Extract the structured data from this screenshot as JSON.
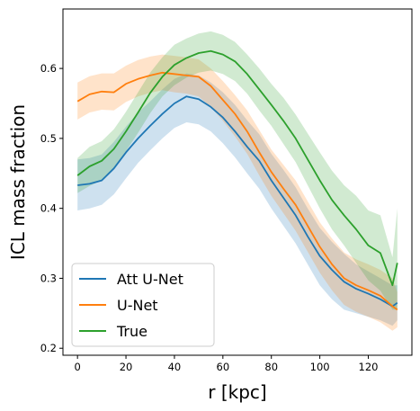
{
  "chart_data": {
    "type": "line",
    "title": "",
    "xlabel": "r [kpc]",
    "ylabel": "ICL mass fraction",
    "xlim": [
      -6,
      138
    ],
    "ylim": [
      0.19,
      0.685
    ],
    "xticks": [
      0,
      20,
      40,
      60,
      80,
      100,
      120
    ],
    "yticks": [
      0.2,
      0.3,
      0.4,
      0.5,
      0.6
    ],
    "grid": false,
    "legend_position": "lower-left",
    "series": [
      {
        "name": "Att U-Net",
        "color": "#1f77b4",
        "x": [
          0,
          5,
          10,
          15,
          20,
          25,
          30,
          35,
          40,
          45,
          50,
          55,
          60,
          65,
          70,
          75,
          80,
          85,
          90,
          95,
          100,
          105,
          110,
          115,
          120,
          125,
          130,
          132
        ],
        "y": [
          0.433,
          0.435,
          0.44,
          0.457,
          0.48,
          0.5,
          0.518,
          0.535,
          0.55,
          0.56,
          0.556,
          0.545,
          0.53,
          0.51,
          0.488,
          0.468,
          0.44,
          0.415,
          0.39,
          0.36,
          0.332,
          0.312,
          0.295,
          0.285,
          0.278,
          0.27,
          0.26,
          0.265
        ],
        "lower": [
          0.397,
          0.4,
          0.405,
          0.42,
          0.443,
          0.465,
          0.483,
          0.5,
          0.515,
          0.523,
          0.52,
          0.51,
          0.493,
          0.473,
          0.45,
          0.428,
          0.4,
          0.375,
          0.35,
          0.32,
          0.29,
          0.27,
          0.255,
          0.25,
          0.245,
          0.24,
          0.232,
          0.24
        ],
        "upper": [
          0.47,
          0.472,
          0.477,
          0.495,
          0.517,
          0.537,
          0.553,
          0.57,
          0.585,
          0.593,
          0.59,
          0.58,
          0.566,
          0.548,
          0.526,
          0.506,
          0.478,
          0.455,
          0.43,
          0.4,
          0.372,
          0.352,
          0.335,
          0.32,
          0.31,
          0.3,
          0.29,
          0.29
        ]
      },
      {
        "name": "U-Net",
        "color": "#ff7f0e",
        "x": [
          0,
          5,
          10,
          15,
          20,
          25,
          30,
          35,
          40,
          45,
          50,
          55,
          60,
          65,
          70,
          75,
          80,
          85,
          90,
          95,
          100,
          105,
          110,
          115,
          120,
          125,
          130,
          132
        ],
        "y": [
          0.553,
          0.563,
          0.567,
          0.566,
          0.578,
          0.585,
          0.59,
          0.594,
          0.592,
          0.59,
          0.588,
          0.575,
          0.555,
          0.535,
          0.51,
          0.48,
          0.452,
          0.428,
          0.405,
          0.375,
          0.345,
          0.32,
          0.3,
          0.29,
          0.283,
          0.275,
          0.26,
          0.255
        ],
        "lower": [
          0.527,
          0.537,
          0.541,
          0.54,
          0.552,
          0.56,
          0.565,
          0.569,
          0.566,
          0.564,
          0.56,
          0.545,
          0.525,
          0.503,
          0.478,
          0.447,
          0.418,
          0.393,
          0.368,
          0.338,
          0.308,
          0.283,
          0.262,
          0.252,
          0.245,
          0.237,
          0.225,
          0.23
        ],
        "upper": [
          0.58,
          0.589,
          0.593,
          0.593,
          0.604,
          0.612,
          0.617,
          0.62,
          0.618,
          0.616,
          0.613,
          0.6,
          0.582,
          0.562,
          0.54,
          0.512,
          0.484,
          0.462,
          0.44,
          0.41,
          0.38,
          0.357,
          0.337,
          0.327,
          0.32,
          0.312,
          0.3,
          0.28
        ]
      },
      {
        "name": "True",
        "color": "#2ca02c",
        "x": [
          0,
          5,
          10,
          15,
          20,
          25,
          30,
          35,
          40,
          45,
          50,
          55,
          60,
          65,
          70,
          75,
          80,
          85,
          90,
          95,
          100,
          105,
          110,
          115,
          120,
          125,
          130,
          132
        ],
        "y": [
          0.447,
          0.46,
          0.468,
          0.485,
          0.51,
          0.537,
          0.565,
          0.588,
          0.605,
          0.615,
          0.622,
          0.625,
          0.62,
          0.61,
          0.592,
          0.57,
          0.548,
          0.525,
          0.5,
          0.47,
          0.44,
          0.412,
          0.39,
          0.37,
          0.347,
          0.336,
          0.29,
          0.322
        ],
        "lower": [
          0.422,
          0.432,
          0.44,
          0.457,
          0.482,
          0.508,
          0.536,
          0.56,
          0.576,
          0.587,
          0.594,
          0.597,
          0.592,
          0.582,
          0.564,
          0.54,
          0.518,
          0.492,
          0.466,
          0.433,
          0.4,
          0.37,
          0.347,
          0.322,
          0.297,
          0.282,
          0.255,
          0.255
        ],
        "upper": [
          0.472,
          0.488,
          0.496,
          0.513,
          0.538,
          0.566,
          0.594,
          0.616,
          0.634,
          0.643,
          0.65,
          0.653,
          0.648,
          0.638,
          0.62,
          0.6,
          0.578,
          0.558,
          0.534,
          0.507,
          0.48,
          0.454,
          0.433,
          0.418,
          0.397,
          0.39,
          0.33,
          0.4
        ]
      }
    ]
  }
}
